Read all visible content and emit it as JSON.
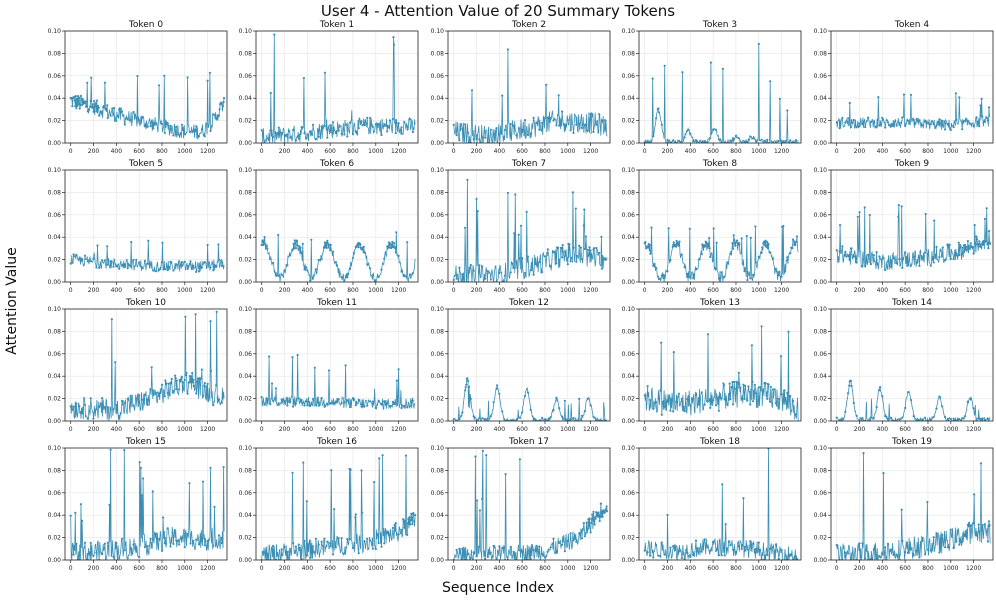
{
  "figure": {
    "title": "User 4 - Attention Value of 20 Summary Tokens",
    "xlabel": "Sequence Index",
    "ylabel": "Attention Value"
  },
  "chart_data": {
    "type": "line",
    "rows": 4,
    "cols": 5,
    "series_color": "#3b8fb5",
    "grid": true,
    "xlim": [
      -50,
      1370
    ],
    "ylim": [
      0,
      0.1
    ],
    "xticks": [
      0,
      200,
      400,
      600,
      800,
      1000,
      1200
    ],
    "yticks": [
      0.0,
      0.02,
      0.04,
      0.06,
      0.08,
      0.1
    ],
    "ytick_labels": [
      "0.00",
      "0.02",
      "0.04",
      "0.06",
      "0.08",
      "0.10"
    ],
    "sequence_length": 1350,
    "panels": [
      {
        "title": "Token 0",
        "base": [
          [
            0,
            0.038
          ],
          [
            200,
            0.032
          ],
          [
            400,
            0.025
          ],
          [
            600,
            0.02
          ],
          [
            800,
            0.015
          ],
          [
            1000,
            0.01
          ],
          [
            1150,
            0.01
          ],
          [
            1250,
            0.02
          ],
          [
            1340,
            0.035
          ]
        ],
        "noise": 0.007,
        "spikes": [
          0.05,
          0.065
        ]
      },
      {
        "title": "Token 1",
        "base": [
          [
            0,
            0.005
          ],
          [
            300,
            0.008
          ],
          [
            600,
            0.012
          ],
          [
            900,
            0.015
          ],
          [
            1200,
            0.015
          ],
          [
            1340,
            0.015
          ]
        ],
        "noise": 0.008,
        "spikes": [
          0.02,
          0.1
        ]
      },
      {
        "title": "Token 2",
        "base": [
          [
            0,
            0.01
          ],
          [
            300,
            0.006
          ],
          [
            600,
            0.012
          ],
          [
            900,
            0.02
          ],
          [
            1200,
            0.018
          ],
          [
            1340,
            0.015
          ]
        ],
        "noise": 0.01,
        "spikes": [
          0.03,
          0.1
        ]
      },
      {
        "title": "Token 3",
        "bumps": [
          [
            120,
            0.028
          ],
          [
            380,
            0.01
          ],
          [
            610,
            0.012
          ],
          [
            800,
            0.004
          ],
          [
            940,
            0.004
          ]
        ],
        "base": [
          [
            0,
            0.001
          ],
          [
            1340,
            0.001
          ]
        ],
        "noise": 0.002,
        "spikes": [
          0.025,
          0.09
        ]
      },
      {
        "title": "Token 4",
        "base": [
          [
            0,
            0.018
          ],
          [
            600,
            0.018
          ],
          [
            1000,
            0.016
          ],
          [
            1340,
            0.02
          ]
        ],
        "noise": 0.005,
        "spikes": [
          0.03,
          0.045
        ]
      },
      {
        "title": "Token 5",
        "base": [
          [
            0,
            0.02
          ],
          [
            400,
            0.016
          ],
          [
            800,
            0.014
          ],
          [
            1200,
            0.014
          ],
          [
            1340,
            0.016
          ]
        ],
        "noise": 0.005,
        "spikes": [
          0.025,
          0.038
        ]
      },
      {
        "title": "Token 6",
        "wave": [
          0.022,
          0.014,
          280
        ],
        "base": [
          [
            0,
            0.004
          ],
          [
            1340,
            0.004
          ]
        ],
        "noise": 0.004,
        "spikes": [
          0.03,
          0.045
        ]
      },
      {
        "title": "Token 7",
        "base": [
          [
            0,
            0.005
          ],
          [
            400,
            0.006
          ],
          [
            700,
            0.015
          ],
          [
            1000,
            0.025
          ],
          [
            1340,
            0.02
          ]
        ],
        "noise": 0.01,
        "spikes": [
          0.03,
          0.1
        ]
      },
      {
        "title": "Token 8",
        "wave": [
          0.022,
          0.013,
          260
        ],
        "base": [
          [
            0,
            0.004
          ],
          [
            1340,
            0.006
          ]
        ],
        "noise": 0.005,
        "spikes": [
          0.035,
          0.05
        ]
      },
      {
        "title": "Token 9",
        "base": [
          [
            0,
            0.025
          ],
          [
            400,
            0.018
          ],
          [
            800,
            0.022
          ],
          [
            1100,
            0.028
          ],
          [
            1340,
            0.038
          ]
        ],
        "noise": 0.008,
        "spikes": [
          0.045,
          0.07
        ]
      },
      {
        "title": "Token 10",
        "base": [
          [
            0,
            0.012
          ],
          [
            400,
            0.01
          ],
          [
            700,
            0.02
          ],
          [
            1000,
            0.035
          ],
          [
            1340,
            0.02
          ]
        ],
        "noise": 0.01,
        "spikes": [
          0.03,
          0.1
        ]
      },
      {
        "title": "Token 11",
        "base": [
          [
            0,
            0.018
          ],
          [
            600,
            0.017
          ],
          [
            1000,
            0.015
          ],
          [
            1340,
            0.016
          ]
        ],
        "noise": 0.005,
        "spikes": [
          0.025,
          0.06
        ]
      },
      {
        "title": "Token 12",
        "bumps": [
          [
            120,
            0.036
          ],
          [
            380,
            0.03
          ],
          [
            640,
            0.028
          ],
          [
            900,
            0.018
          ],
          [
            1180,
            0.02
          ]
        ],
        "base": [
          [
            0,
            0.001
          ],
          [
            1340,
            0.001
          ]
        ],
        "noise": 0.002,
        "spikes": [
          0.01,
          0.02
        ]
      },
      {
        "title": "Token 13",
        "base": [
          [
            0,
            0.02
          ],
          [
            300,
            0.015
          ],
          [
            600,
            0.02
          ],
          [
            900,
            0.025
          ],
          [
            1200,
            0.02
          ],
          [
            1340,
            0.01
          ]
        ],
        "noise": 0.012,
        "spikes": [
          0.04,
          0.1
        ]
      },
      {
        "title": "Token 14",
        "bumps": [
          [
            120,
            0.034
          ],
          [
            380,
            0.028
          ],
          [
            630,
            0.026
          ],
          [
            900,
            0.02
          ],
          [
            1170,
            0.02
          ]
        ],
        "base": [
          [
            0,
            0.001
          ],
          [
            1340,
            0.001
          ]
        ],
        "noise": 0.002,
        "spikes": [
          0.01,
          0.02
        ]
      },
      {
        "title": "Token 15",
        "base": [
          [
            0,
            0.005
          ],
          [
            300,
            0.008
          ],
          [
            600,
            0.012
          ],
          [
            900,
            0.02
          ],
          [
            1200,
            0.018
          ],
          [
            1340,
            0.02
          ]
        ],
        "noise": 0.01,
        "spikes": [
          0.03,
          0.1
        ]
      },
      {
        "title": "Token 16",
        "base": [
          [
            0,
            0.004
          ],
          [
            300,
            0.008
          ],
          [
            600,
            0.012
          ],
          [
            900,
            0.015
          ],
          [
            1200,
            0.025
          ],
          [
            1340,
            0.035
          ]
        ],
        "noise": 0.009,
        "spikes": [
          0.03,
          0.1
        ]
      },
      {
        "title": "Token 17",
        "base": [
          [
            0,
            0.004
          ],
          [
            400,
            0.005
          ],
          [
            800,
            0.008
          ],
          [
            1100,
            0.02
          ],
          [
            1340,
            0.05
          ]
        ],
        "noise": 0.008,
        "spikes": [
          0.03,
          0.1
        ]
      },
      {
        "title": "Token 18",
        "base": [
          [
            0,
            0.01
          ],
          [
            300,
            0.008
          ],
          [
            600,
            0.012
          ],
          [
            900,
            0.01
          ],
          [
            1200,
            0.006
          ],
          [
            1340,
            0.004
          ]
        ],
        "noise": 0.008,
        "spikes": [
          0.03,
          0.1
        ]
      },
      {
        "title": "Token 19",
        "base": [
          [
            0,
            0.005
          ],
          [
            300,
            0.006
          ],
          [
            600,
            0.01
          ],
          [
            900,
            0.015
          ],
          [
            1200,
            0.025
          ],
          [
            1340,
            0.025
          ]
        ],
        "noise": 0.01,
        "spikes": [
          0.03,
          0.1
        ]
      }
    ]
  }
}
